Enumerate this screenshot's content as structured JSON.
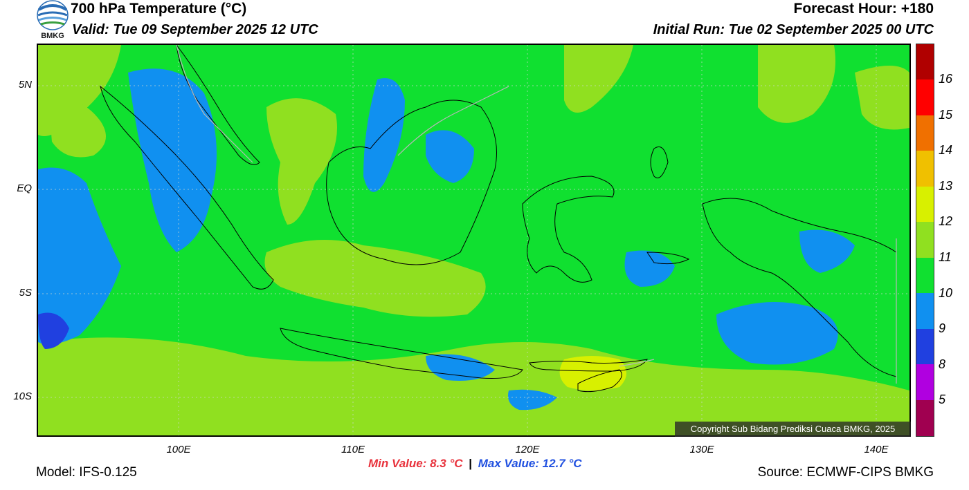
{
  "header": {
    "title": "700 hPa Temperature (°C)",
    "valid": "Valid: Tue 09 September 2025 12 UTC",
    "forecast_hour": "Forecast Hour: +180",
    "initial_run": "Initial Run: Tue 02 September 2025 00 UTC",
    "logo_text": "BMKG"
  },
  "axes": {
    "lat_labels": [
      "5N",
      "EQ",
      "5S",
      "10S"
    ],
    "lon_labels": [
      "100E",
      "110E",
      "120E",
      "130E",
      "140E"
    ]
  },
  "colorbar": {
    "labels": [
      "16",
      "15",
      "14",
      "13",
      "12",
      "11",
      "10",
      "9",
      "8",
      "5"
    ],
    "colors": [
      "#b00000",
      "#ff0000",
      "#f07000",
      "#f0c000",
      "#d8f000",
      "#90e020",
      "#10e030",
      "#1090f0",
      "#2040e0",
      "#b000e0",
      "#a00050"
    ]
  },
  "footer": {
    "copyright": "Copyright Sub Bidang Prediksi Cuaca BMKG, 2025",
    "model": "Model: IFS-0.125",
    "source": "Source: ECMWF-CIPS BMKG",
    "min_value": "Min Value: 8.3 °C",
    "separator": "|",
    "max_value": "Max Value: 12.7 °C"
  }
}
